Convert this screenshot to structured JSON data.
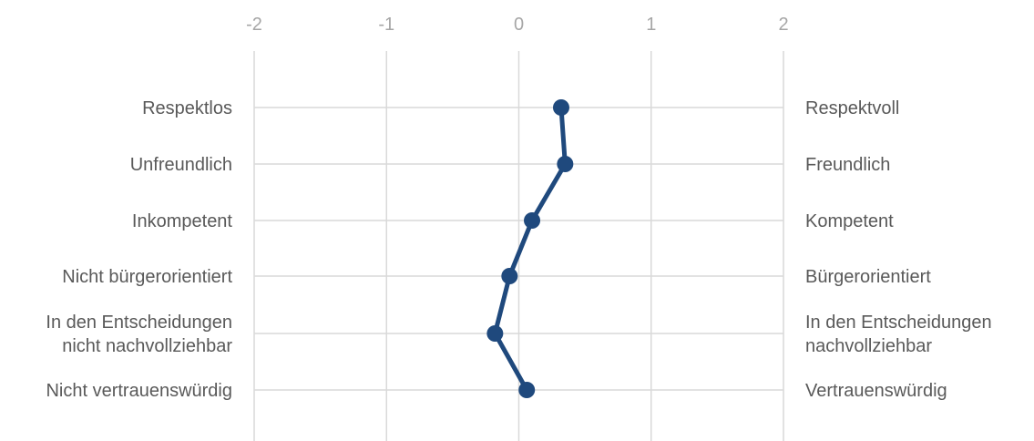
{
  "chart_data": {
    "type": "line",
    "title": "",
    "xlim": [
      -2,
      2
    ],
    "x_ticks": [
      "-2",
      "-1",
      "0",
      "1",
      "2"
    ],
    "grid": true,
    "legend": "none",
    "left_labels": [
      [
        "Respektlos"
      ],
      [
        "Unfreundlich"
      ],
      [
        "Inkompetent"
      ],
      [
        "Nicht bürgerorientiert"
      ],
      [
        "In den Entscheidungen",
        "nicht nachvollziehbar"
      ],
      [
        "Nicht vertrauenswürdig"
      ]
    ],
    "right_labels": [
      [
        "Respektvoll"
      ],
      [
        "Freundlich"
      ],
      [
        "Kompetent"
      ],
      [
        "Bürgerorientiert"
      ],
      [
        "In den Entscheidungen",
        "nachvollziehbar"
      ],
      [
        "Vertrauenswürdig"
      ]
    ],
    "series": [
      {
        "values": [
          0.32,
          0.35,
          0.1,
          -0.07,
          -0.18,
          0.06
        ]
      }
    ],
    "colors": {
      "series": "#1f497d",
      "grid": "#d9d9d9",
      "tick": "#a6a6a6",
      "label": "#595959"
    }
  }
}
